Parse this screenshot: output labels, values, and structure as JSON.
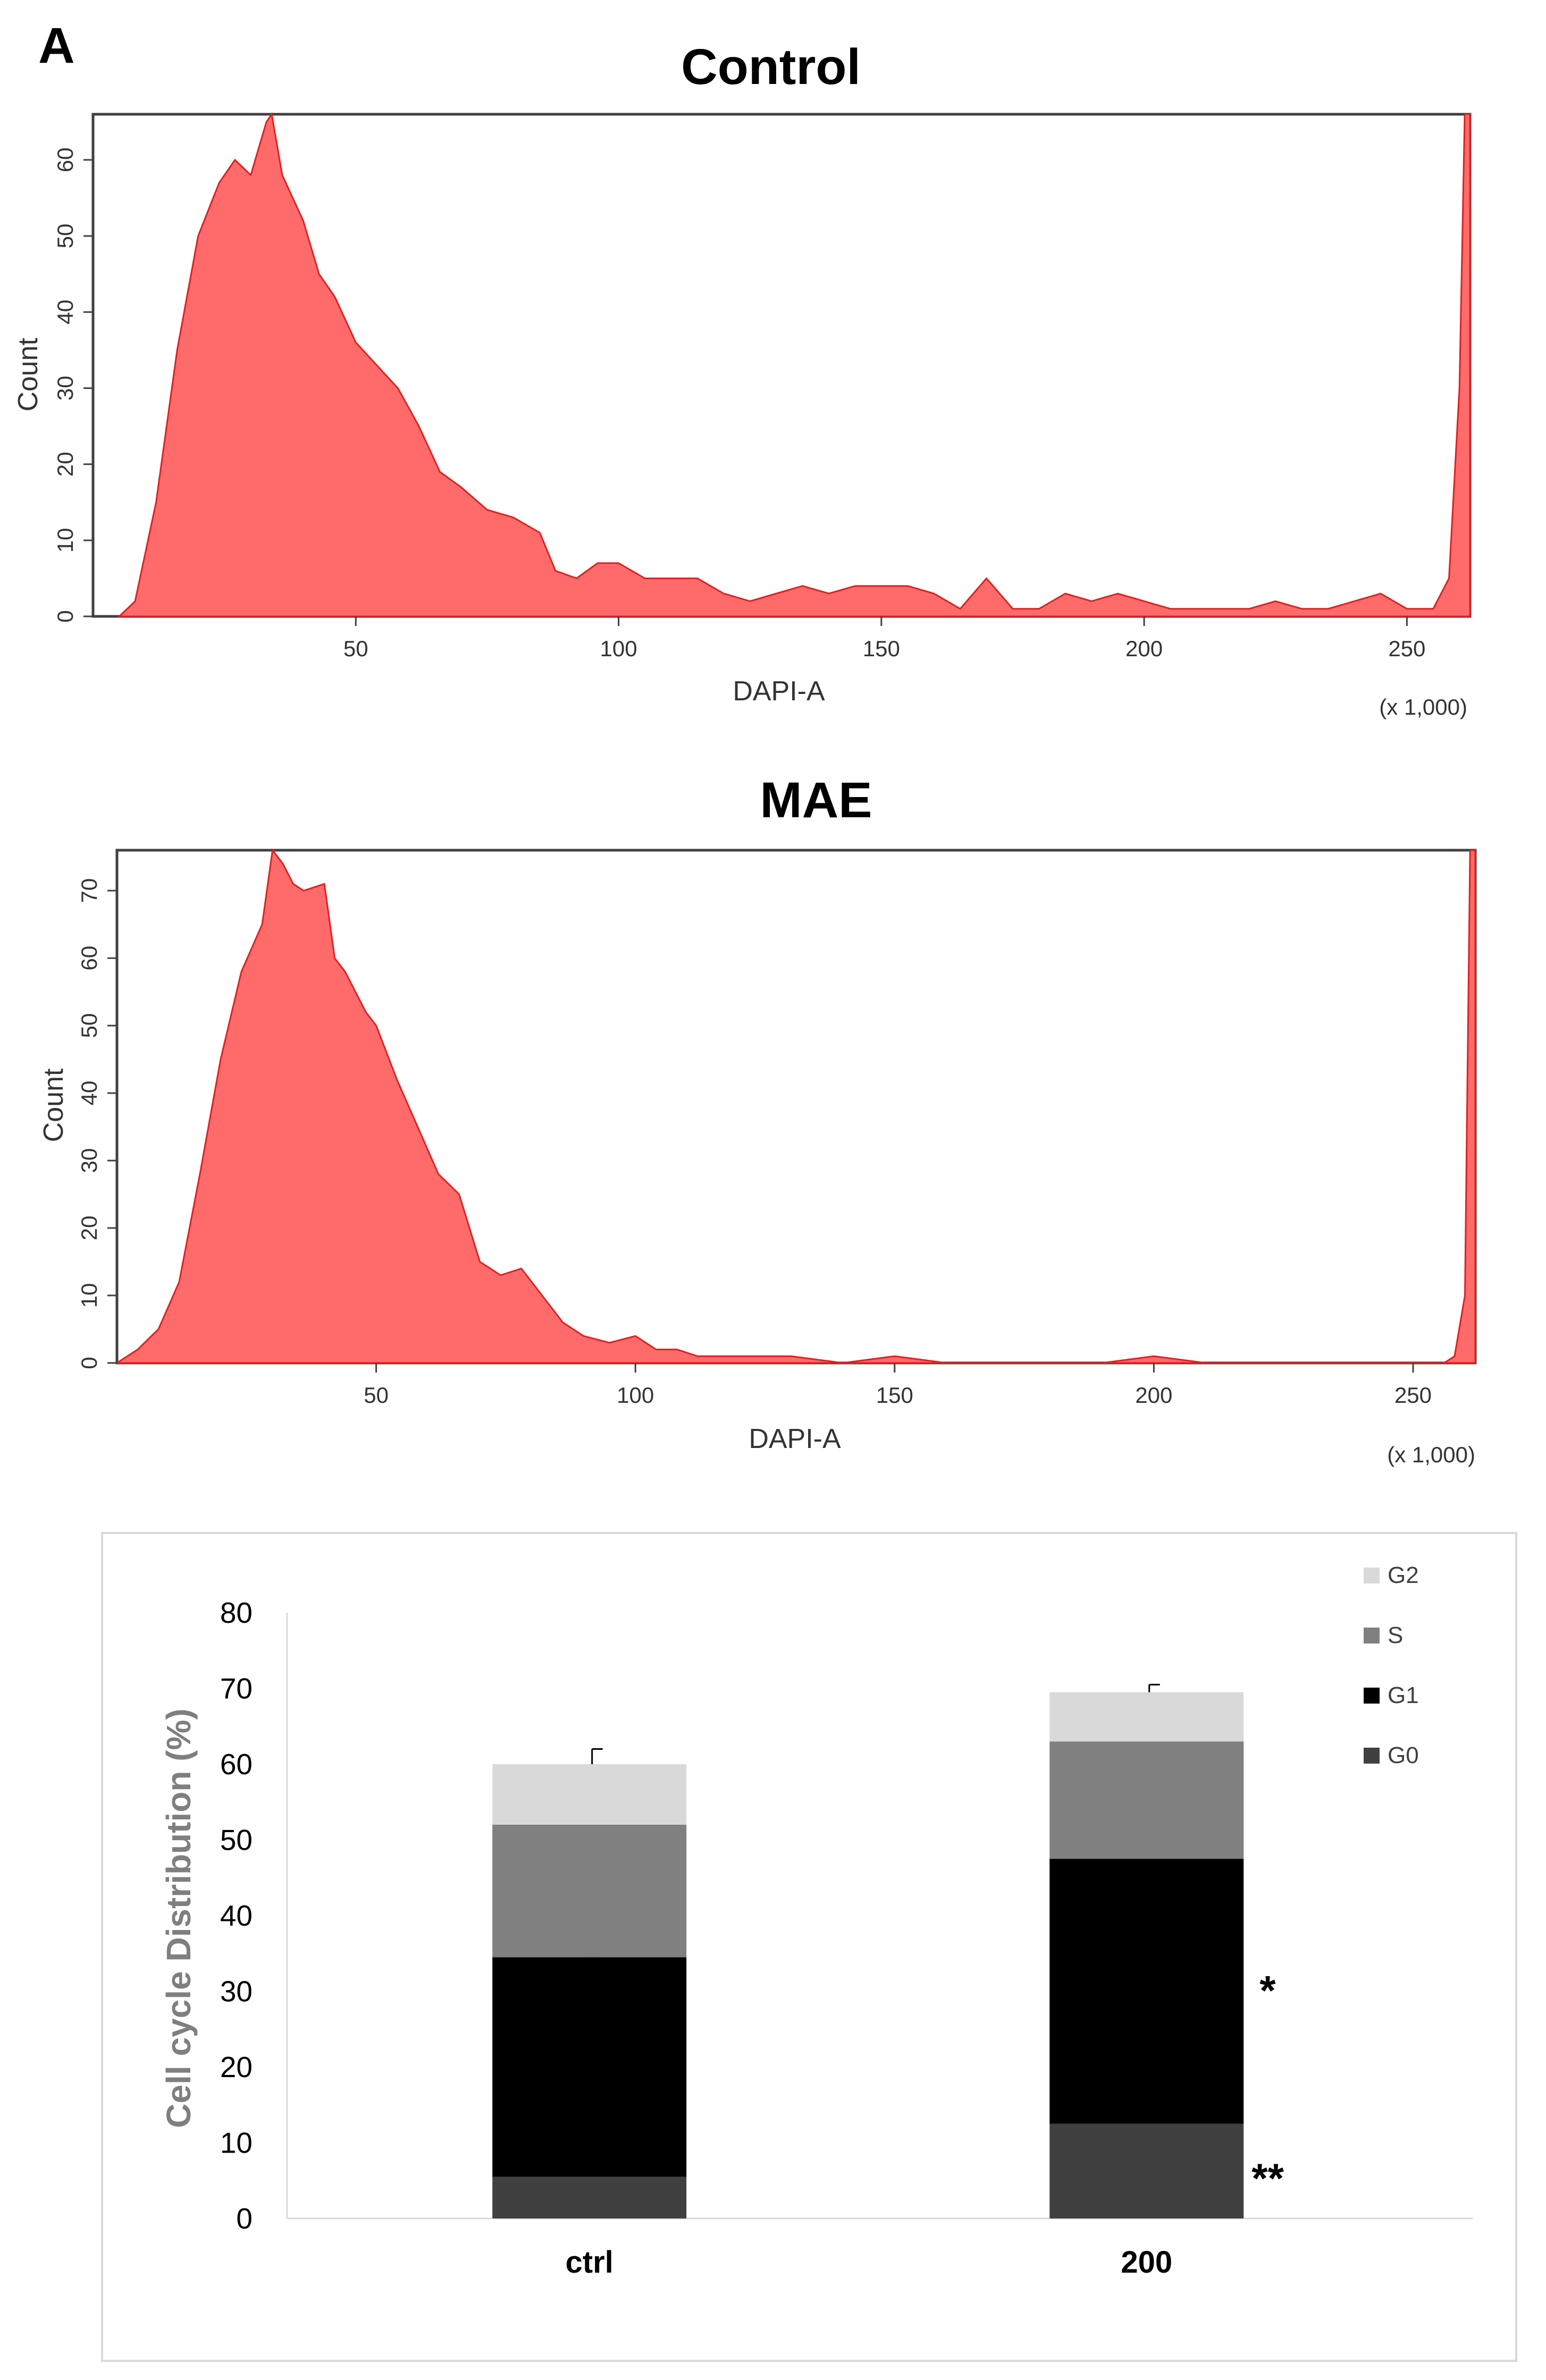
{
  "panel_label": "A",
  "colors": {
    "histogram_fill": "#ff6b6b",
    "histogram_stroke": "#e02020",
    "G0": "#404040",
    "G1": "#000000",
    "S": "#808080",
    "G2": "#d9d9d9"
  },
  "chart_data": [
    {
      "type": "area",
      "title": "Control",
      "xlabel": "DAPI-A",
      "ylabel": "Count",
      "x_scale_note": "(x 1,000)",
      "xlim": [
        0,
        262
      ],
      "ylim": [
        0,
        66
      ],
      "xticks": [
        50,
        100,
        150,
        200,
        250
      ],
      "yticks": [
        0,
        10,
        20,
        30,
        40,
        50,
        60
      ],
      "series": [
        {
          "x": [
            5,
            8,
            12,
            16,
            20,
            24,
            27,
            30,
            33,
            34,
            36,
            38,
            40,
            43,
            46,
            50,
            54,
            58,
            62,
            66,
            70,
            75,
            80,
            85,
            88,
            92,
            96,
            100,
            105,
            110,
            115,
            120,
            125,
            130,
            135,
            140,
            145,
            150,
            155,
            160,
            165,
            170,
            175,
            180,
            185,
            190,
            195,
            200,
            205,
            210,
            215,
            220,
            225,
            230,
            235,
            240,
            245,
            250,
            255,
            258,
            260,
            261,
            262
          ],
          "y": [
            0,
            2,
            15,
            35,
            50,
            57,
            60,
            58,
            65,
            66,
            58,
            55,
            52,
            45,
            42,
            36,
            33,
            30,
            25,
            19,
            17,
            14,
            13,
            11,
            6,
            5,
            7,
            7,
            5,
            5,
            5,
            3,
            2,
            3,
            4,
            3,
            4,
            4,
            4,
            3,
            1,
            5,
            1,
            1,
            3,
            2,
            3,
            2,
            1,
            1,
            1,
            1,
            2,
            1,
            1,
            2,
            3,
            1,
            1,
            5,
            30,
            66,
            66
          ]
        }
      ]
    },
    {
      "type": "area",
      "title": "MAE",
      "xlabel": "DAPI-A",
      "ylabel": "Count",
      "x_scale_note": "(x 1,000)",
      "xlim": [
        0,
        262
      ],
      "ylim": [
        0,
        76
      ],
      "xticks": [
        50,
        100,
        150,
        200,
        250
      ],
      "yticks": [
        0,
        10,
        20,
        30,
        40,
        50,
        60,
        70
      ],
      "series": [
        {
          "x": [
            0,
            4,
            8,
            12,
            16,
            20,
            24,
            28,
            30,
            32,
            34,
            36,
            40,
            42,
            44,
            46,
            48,
            50,
            54,
            58,
            62,
            66,
            70,
            74,
            78,
            82,
            86,
            90,
            95,
            100,
            104,
            108,
            112,
            116,
            120,
            130,
            140,
            150,
            160,
            170,
            180,
            190,
            200,
            210,
            220,
            230,
            240,
            250,
            256,
            258,
            260,
            261,
            262
          ],
          "y": [
            0,
            2,
            5,
            12,
            28,
            45,
            58,
            65,
            76,
            74,
            71,
            70,
            71,
            60,
            58,
            55,
            52,
            50,
            42,
            35,
            28,
            25,
            15,
            13,
            14,
            10,
            6,
            4,
            3,
            4,
            2,
            2,
            1,
            1,
            1,
            1,
            0,
            1,
            0,
            0,
            0,
            0,
            1,
            0,
            0,
            0,
            0,
            0,
            0,
            1,
            10,
            76,
            76
          ]
        }
      ]
    },
    {
      "type": "bar",
      "stacked": true,
      "ylabel": "Cell cycle Distribution (%)",
      "ylim": [
        0,
        80
      ],
      "yticks": [
        0,
        10,
        20,
        30,
        40,
        50,
        60,
        70,
        80
      ],
      "categories": [
        "ctrl",
        "200"
      ],
      "series": [
        {
          "name": "G0",
          "values": [
            5.5,
            12.5
          ]
        },
        {
          "name": "G1",
          "values": [
            29,
            35
          ]
        },
        {
          "name": "S",
          "values": [
            17.5,
            15.5
          ]
        },
        {
          "name": "G2",
          "values": [
            8,
            6.5
          ]
        }
      ],
      "error_bars": {
        "G1": [
          4.5,
          3.5
        ],
        "G2": [
          2,
          1
        ]
      },
      "legend": [
        "G2",
        "S",
        "G1",
        "G0"
      ],
      "legend_position": "top-right",
      "annotations": {
        "200": {
          "G1": "*",
          "G0": "**"
        }
      }
    }
  ]
}
